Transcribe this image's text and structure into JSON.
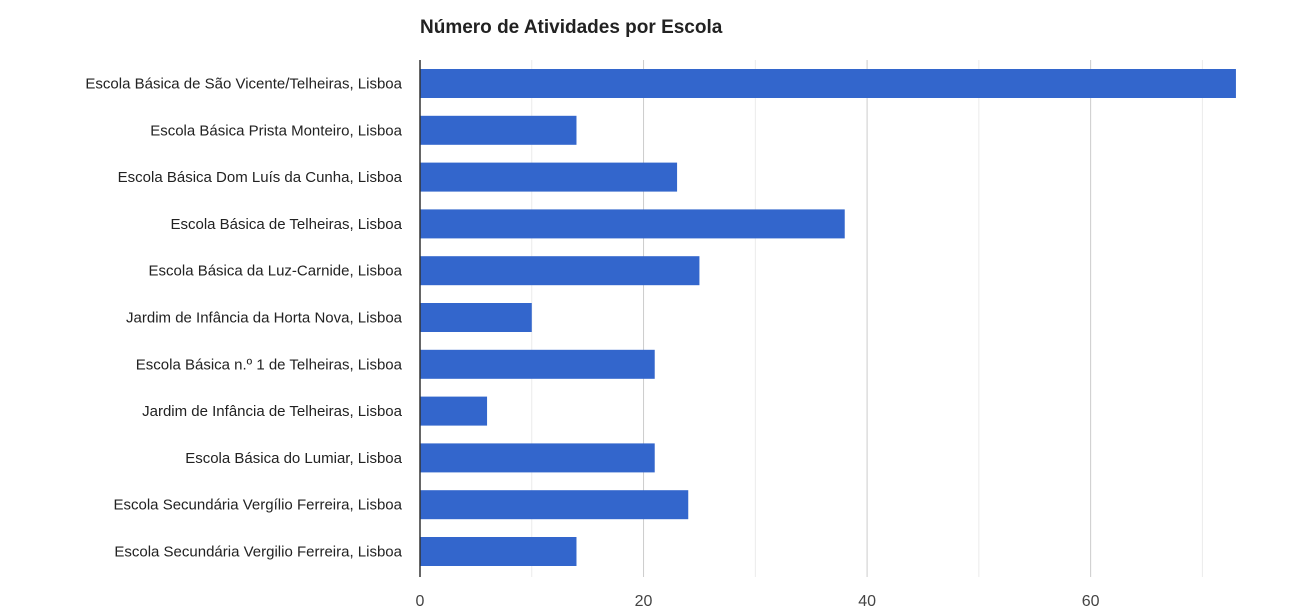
{
  "chart_data": {
    "type": "bar",
    "orientation": "horizontal",
    "title": "Número de Atividades por Escola",
    "xlabel": "",
    "ylabel": "",
    "categories": [
      "Escola Básica de São Vicente/Telheiras, Lisboa",
      "Escola Básica Prista Monteiro, Lisboa",
      "Escola Básica Dom Luís da Cunha, Lisboa",
      "Escola Básica de Telheiras, Lisboa",
      "Escola Básica da Luz-Carnide, Lisboa",
      "Jardim de Infância da Horta Nova, Lisboa",
      "Escola Básica n.º 1 de Telheiras, Lisboa",
      "Jardim de Infância de Telheiras, Lisboa",
      "Escola Básica do Lumiar, Lisboa",
      "Escola Secundária Vergílio Ferreira, Lisboa",
      "Escola Secundária Vergilio Ferreira, Lisboa"
    ],
    "values": [
      73,
      14,
      23,
      38,
      25,
      10,
      21,
      6,
      21,
      24,
      14
    ],
    "xlim": [
      0,
      79
    ],
    "xticks": [
      0,
      20,
      40,
      60
    ],
    "minor_gridlines": [
      10,
      30,
      50,
      70
    ],
    "grid": true,
    "legend": "none",
    "colors": {
      "bar": "#3366cc",
      "gridline": "#cccccc",
      "minor_gridline": "#ebebeb",
      "axis": "#333333"
    }
  }
}
